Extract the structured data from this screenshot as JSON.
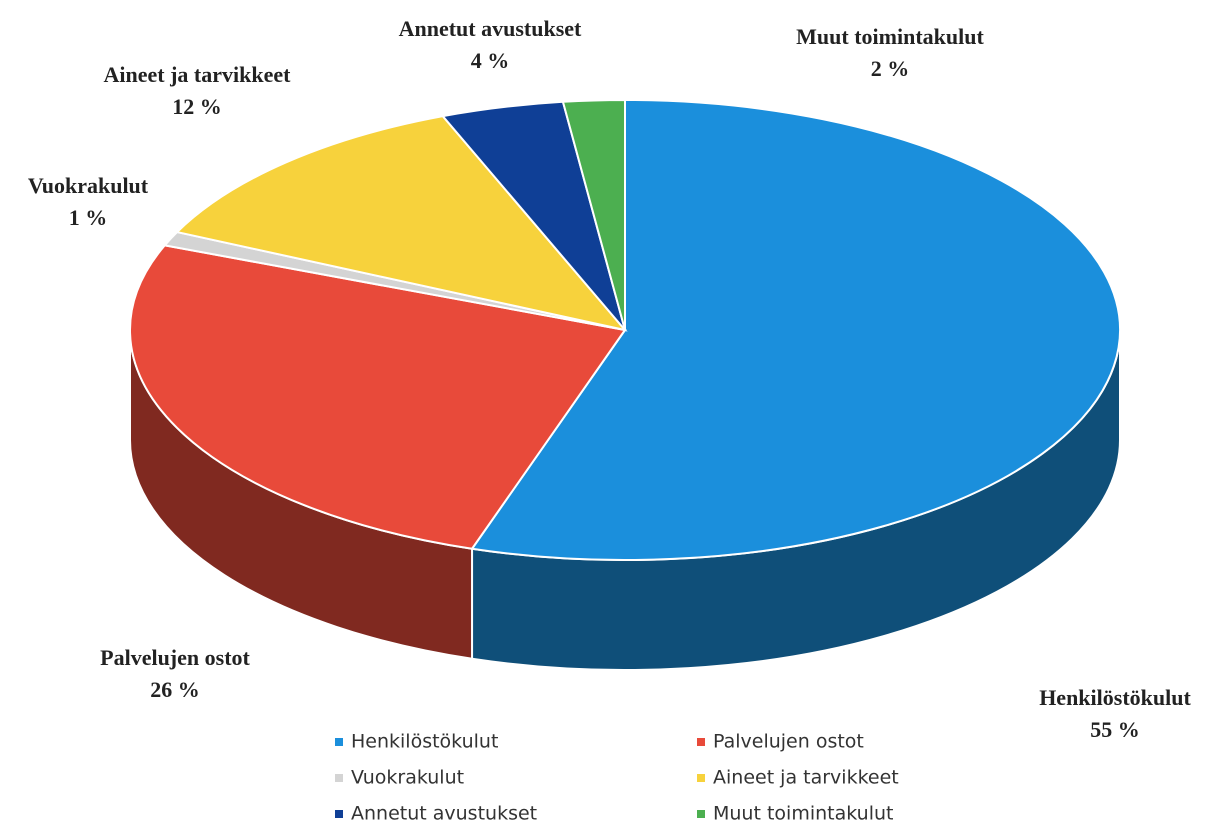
{
  "chart_data": {
    "type": "pie",
    "categories": [
      "Henkilöstökulut",
      "Palvelujen ostot",
      "Vuokrakulut",
      "Aineet ja tarvikkeet",
      "Annetut avustukset",
      "Muut toimintakulut"
    ],
    "values": [
      55,
      26,
      1,
      12,
      4,
      2
    ],
    "value_labels": [
      "55 %",
      "26 %",
      "1 %",
      "12 %",
      "4 %",
      "2 %"
    ],
    "colors": [
      "#1b8fdc",
      "#e84a3a",
      "#d4d4d4",
      "#f7d23c",
      "#0f3f96",
      "#4caf50"
    ],
    "legend": "bottom"
  }
}
